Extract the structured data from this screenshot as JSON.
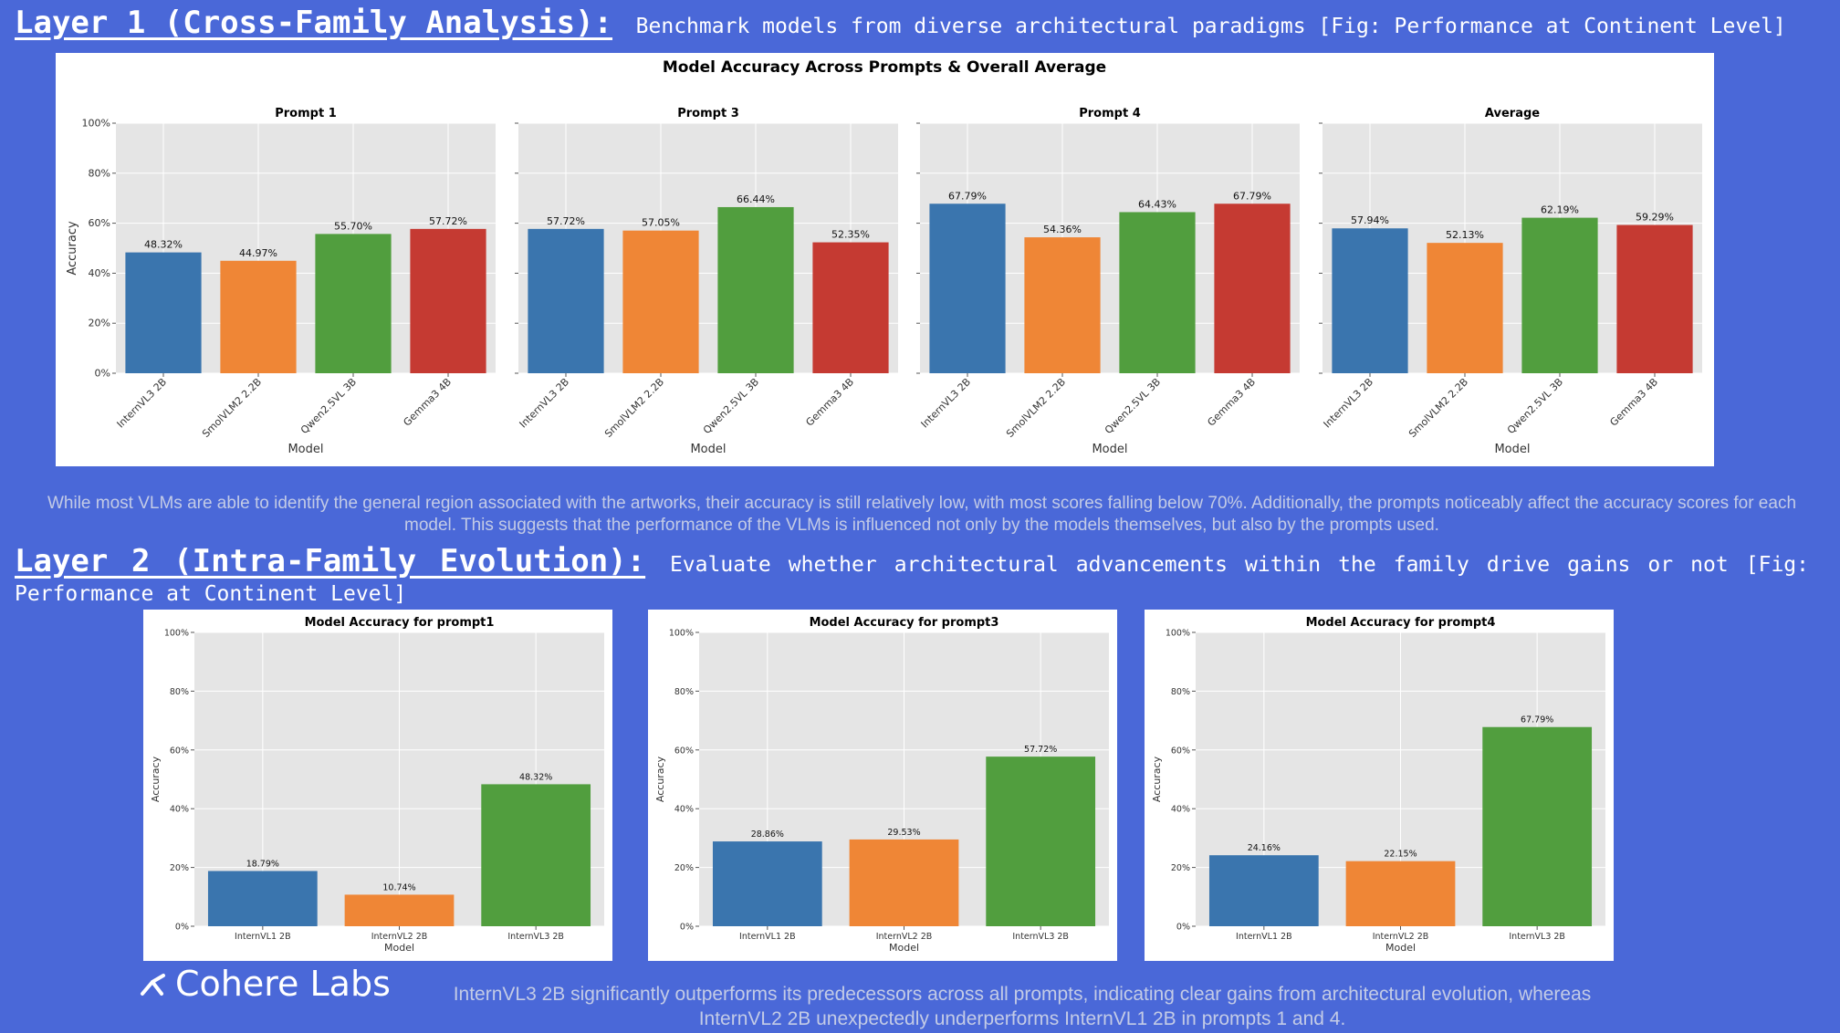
{
  "layer1": {
    "title": "Layer 1 (Cross-Family Analysis):",
    "description": "Benchmark models from diverse architectural paradigms [Fig: Performance at Continent Level]",
    "caption": "While most VLMs are able to identify the general region associated with the artworks, their accuracy is still relatively low, with most scores falling below 70%. Additionally, the prompts noticeably affect the accuracy scores for each model. This suggests that the performance of the VLMs is influenced not only by the models themselves, but also by the prompts used."
  },
  "layer2": {
    "title": "Layer 2 (Intra-Family Evolution):",
    "description": "Evaluate whether architectural advancements within the family drive gains or not [Fig: Performance at Continent Level]",
    "caption": "InternVL3 2B significantly outperforms its predecessors across all prompts, indicating clear gains from architectural evolution, whereas InternVL2 2B unexpectedly underperforms InternVL1 2B in prompts 1 and 4."
  },
  "logo": {
    "text": "Cohere Labs",
    "icon": "cohere-logo-icon"
  },
  "colors": {
    "blue": "#3a75ae",
    "orange": "#ef8636",
    "green": "#519e3e",
    "red": "#c53a32",
    "plot_bg": "#e5e5e5"
  },
  "chart_data": [
    {
      "type": "bar",
      "title": "Model Accuracy Across Prompts & Overall Average",
      "xlabel": "Model",
      "ylabel": "Accuracy",
      "yticks": [
        "0%",
        "20%",
        "40%",
        "60%",
        "80%",
        "100%"
      ],
      "ylim": [
        0,
        100
      ],
      "categories": [
        "InternVL3 2B",
        "SmolVLM2 2.2B",
        "Qwen2.5VL 3B",
        "Gemma3 4B"
      ],
      "subplots": [
        {
          "title": "Prompt 1",
          "values": [
            48.32,
            44.97,
            55.7,
            57.72
          ],
          "labels": [
            "48.32%",
            "44.97%",
            "55.70%",
            "57.72%"
          ]
        },
        {
          "title": "Prompt 3",
          "values": [
            57.72,
            57.05,
            66.44,
            52.35
          ],
          "labels": [
            "57.72%",
            "57.05%",
            "66.44%",
            "52.35%"
          ]
        },
        {
          "title": "Prompt 4",
          "values": [
            67.79,
            54.36,
            64.43,
            67.79
          ],
          "labels": [
            "67.79%",
            "54.36%",
            "64.43%",
            "67.79%"
          ]
        },
        {
          "title": "Average",
          "values": [
            57.94,
            52.13,
            62.19,
            59.29
          ],
          "labels": [
            "57.94%",
            "52.13%",
            "62.19%",
            "59.29%"
          ]
        }
      ]
    },
    {
      "type": "bar",
      "title": "Model Accuracy for prompt1",
      "xlabel": "Model",
      "ylabel": "Accuracy",
      "yticks": [
        "0%",
        "20%",
        "40%",
        "60%",
        "80%",
        "100%"
      ],
      "ylim": [
        0,
        100
      ],
      "categories": [
        "InternVL1 2B",
        "InternVL2 2B",
        "InternVL3 2B"
      ],
      "values": [
        18.79,
        10.74,
        48.32
      ],
      "labels": [
        "18.79%",
        "10.74%",
        "48.32%"
      ]
    },
    {
      "type": "bar",
      "title": "Model Accuracy for prompt3",
      "xlabel": "Model",
      "ylabel": "Accuracy",
      "yticks": [
        "0%",
        "20%",
        "40%",
        "60%",
        "80%",
        "100%"
      ],
      "ylim": [
        0,
        100
      ],
      "categories": [
        "InternVL1 2B",
        "InternVL2 2B",
        "InternVL3 2B"
      ],
      "values": [
        28.86,
        29.53,
        57.72
      ],
      "labels": [
        "28.86%",
        "29.53%",
        "57.72%"
      ]
    },
    {
      "type": "bar",
      "title": "Model Accuracy for prompt4",
      "xlabel": "Model",
      "ylabel": "Accuracy",
      "yticks": [
        "0%",
        "20%",
        "40%",
        "60%",
        "80%",
        "100%"
      ],
      "ylim": [
        0,
        100
      ],
      "categories": [
        "InternVL1 2B",
        "InternVL2 2B",
        "InternVL3 2B"
      ],
      "values": [
        24.16,
        22.15,
        67.79
      ],
      "labels": [
        "24.16%",
        "22.15%",
        "67.79%"
      ]
    }
  ]
}
